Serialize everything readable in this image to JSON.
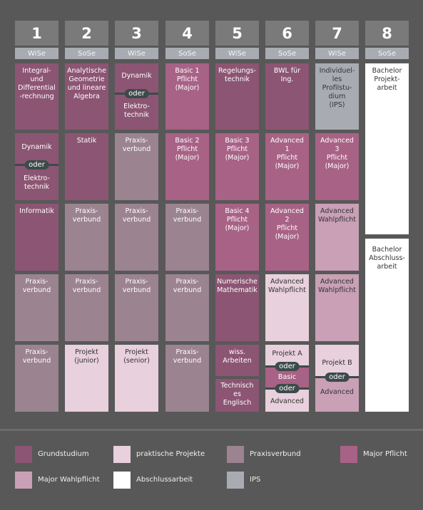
{
  "colors": {
    "grundstudium": "#8c5573",
    "praktisch": "#e8d0dc",
    "praxisverbund": "#9b8390",
    "pflicht": "#a86286",
    "wahlpflicht": "#c9a0b6",
    "abschluss": "#ffffff",
    "ips": "#a8acb2"
  },
  "semesters": [
    {
      "num": "1",
      "term": "WiSe"
    },
    {
      "num": "2",
      "term": "SoSe"
    },
    {
      "num": "3",
      "term": "WiSe"
    },
    {
      "num": "4",
      "term": "SoSe"
    },
    {
      "num": "5",
      "term": "WiSe"
    },
    {
      "num": "6",
      "term": "SoSe"
    },
    {
      "num": "7",
      "term": "WiSe"
    },
    {
      "num": "8",
      "term": "SoSe"
    }
  ],
  "oder": "oder",
  "modules": {
    "c1": {
      "r1": "Integral-\nund\nDifferential\n-rechnung",
      "r2a": "Dynamik",
      "r2b": "Elektro-\ntechnik",
      "r3": "Informatik",
      "r4": "Praxis-\nverbund",
      "r5": "Praxis-\nverbund"
    },
    "c2": {
      "r1": "Analytische\nGeometrie\nund lineare\nAlgebra",
      "r2": "Statik",
      "r3": "Praxis-\nverbund",
      "r4": "Praxis-\nverbund",
      "r5": "Projekt\n(junior)"
    },
    "c3": {
      "r1a": "Dynamik",
      "r1b": "Elektro-\ntechnik",
      "r2": "Praxis-\nverbund",
      "r3": "Praxis-\nverbund",
      "r4": "Praxis-\nverbund",
      "r5": "Projekt\n(senior)"
    },
    "c4": {
      "r1": "Basic 1\nPflicht\n(Major)",
      "r2": "Basic 2\nPflicht\n(Major)",
      "r3": "Praxis-\nverbund",
      "r4": "Praxis-\nverbund",
      "r5": "Praxis-\nverbund"
    },
    "c5": {
      "r1": "Regelungs-\ntechnik",
      "r2": "Basic 3\nPflicht\n(Major)",
      "r3": "Basic 4\nPflicht\n(Major)",
      "r4": "Numerische\nMathematik",
      "r5a": "wiss.\nArbeiten",
      "r5b": "Technisch\nes\nEnglisch"
    },
    "c6": {
      "r1": "BWL für\nIng.",
      "r2": "Advanced\n1\nPflicht\n(Major)",
      "r3": "Advanced\n2\nPflicht\n(Major)",
      "r4": "Advanced\nWahlpflicht",
      "r5a": "Projekt A",
      "r5b": "Basic",
      "r5c": "Advanced"
    },
    "c7": {
      "r1": "Individuel-\nles\nProfilstu-\ndium\n(IPS)",
      "r2": "Advanced\n3\nPflicht\n(Major)",
      "r3": "Advanced\nWahlpflicht",
      "r4": "Advanced\nWahlpflicht",
      "r5a": "Projekt B",
      "r5b": "Advanced"
    },
    "c8": {
      "top": "Bachelor\nProjekt-\narbeit",
      "bottom": "Bachelor\nAbschluss-\narbeit"
    }
  },
  "legend": [
    {
      "label": "Grundstudium",
      "color": "#8c5573"
    },
    {
      "label": "praktische Projekte",
      "color": "#e8d0dc"
    },
    {
      "label": "Praxisverbund",
      "color": "#9b8390"
    },
    {
      "label": "Major Pflicht",
      "color": "#a86286"
    },
    {
      "label": "Major Wahlpflicht",
      "color": "#c9a0b6"
    },
    {
      "label": "Abschlussarbeit",
      "color": "#ffffff"
    },
    {
      "label": "IPS",
      "color": "#a8acb2"
    }
  ]
}
